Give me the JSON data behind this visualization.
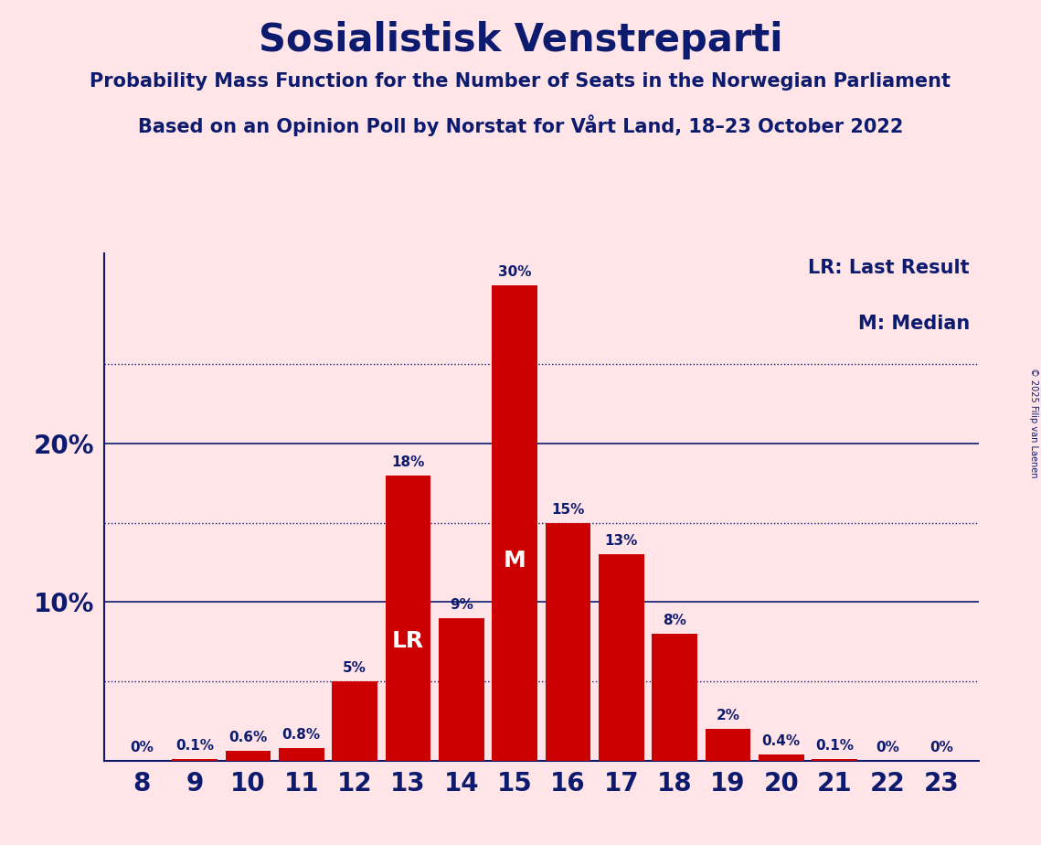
{
  "title": "Sosialistisk Venstreparti",
  "subtitle1": "Probability Mass Function for the Number of Seats in the Norwegian Parliament",
  "subtitle2": "Based on an Opinion Poll by Norstat for Vårt Land, 18–23 October 2022",
  "copyright": "© 2025 Filip van Laenen",
  "seats": [
    8,
    9,
    10,
    11,
    12,
    13,
    14,
    15,
    16,
    17,
    18,
    19,
    20,
    21,
    22,
    23
  ],
  "values": [
    0.0,
    0.1,
    0.6,
    0.8,
    5.0,
    18.0,
    9.0,
    30.0,
    15.0,
    13.0,
    8.0,
    2.0,
    0.4,
    0.1,
    0.0,
    0.0
  ],
  "labels": [
    "0%",
    "0.1%",
    "0.6%",
    "0.8%",
    "5%",
    "18%",
    "9%",
    "30%",
    "15%",
    "13%",
    "8%",
    "2%",
    "0.4%",
    "0.1%",
    "0%",
    "0%"
  ],
  "bar_color": "#CC0000",
  "background_color": "#FFE4E8",
  "text_color": "#0D1B6E",
  "lr_seat": 13,
  "median_seat": 15,
  "ylim": [
    0,
    32
  ],
  "legend_lr": "LR: Last Result",
  "legend_m": "M: Median",
  "solid_gridlines": [
    10,
    20
  ],
  "dotted_gridlines": [
    5,
    15,
    25
  ],
  "title_fontsize": 30,
  "subtitle_fontsize": 15,
  "tick_fontsize": 20,
  "label_fontsize": 11,
  "legend_fontsize": 15,
  "lr_fontsize": 18,
  "m_fontsize": 18
}
